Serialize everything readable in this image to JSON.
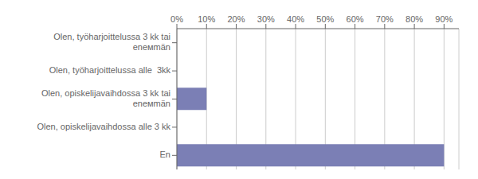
{
  "chart_data": {
    "type": "bar",
    "orientation": "horizontal",
    "categories": [
      "Olen, työharjoittelussa 3 kk tai\nenемmän",
      "Olen, työharjoittelussa alle  3kk",
      "Olen, opiskelijavaihdossa 3 kk tai\nenемmän",
      "Olen, opiskelijavaihdossa alle 3 kk",
      "En"
    ],
    "values": [
      0,
      0,
      10,
      0,
      90
    ],
    "color": "#7b7fb5",
    "xlim": [
      0,
      95
    ],
    "xticks": [
      {
        "value": 0,
        "label": "0%"
      },
      {
        "value": 10,
        "label": "10%"
      },
      {
        "value": 20,
        "label": "20%"
      },
      {
        "value": 30,
        "label": "30%"
      },
      {
        "value": 40,
        "label": "40%"
      },
      {
        "value": 50,
        "label": "50%"
      },
      {
        "value": 60,
        "label": "60%"
      },
      {
        "value": 70,
        "label": "70%"
      },
      {
        "value": 80,
        "label": "80%"
      },
      {
        "value": 90,
        "label": "90%"
      }
    ],
    "grid": true
  }
}
